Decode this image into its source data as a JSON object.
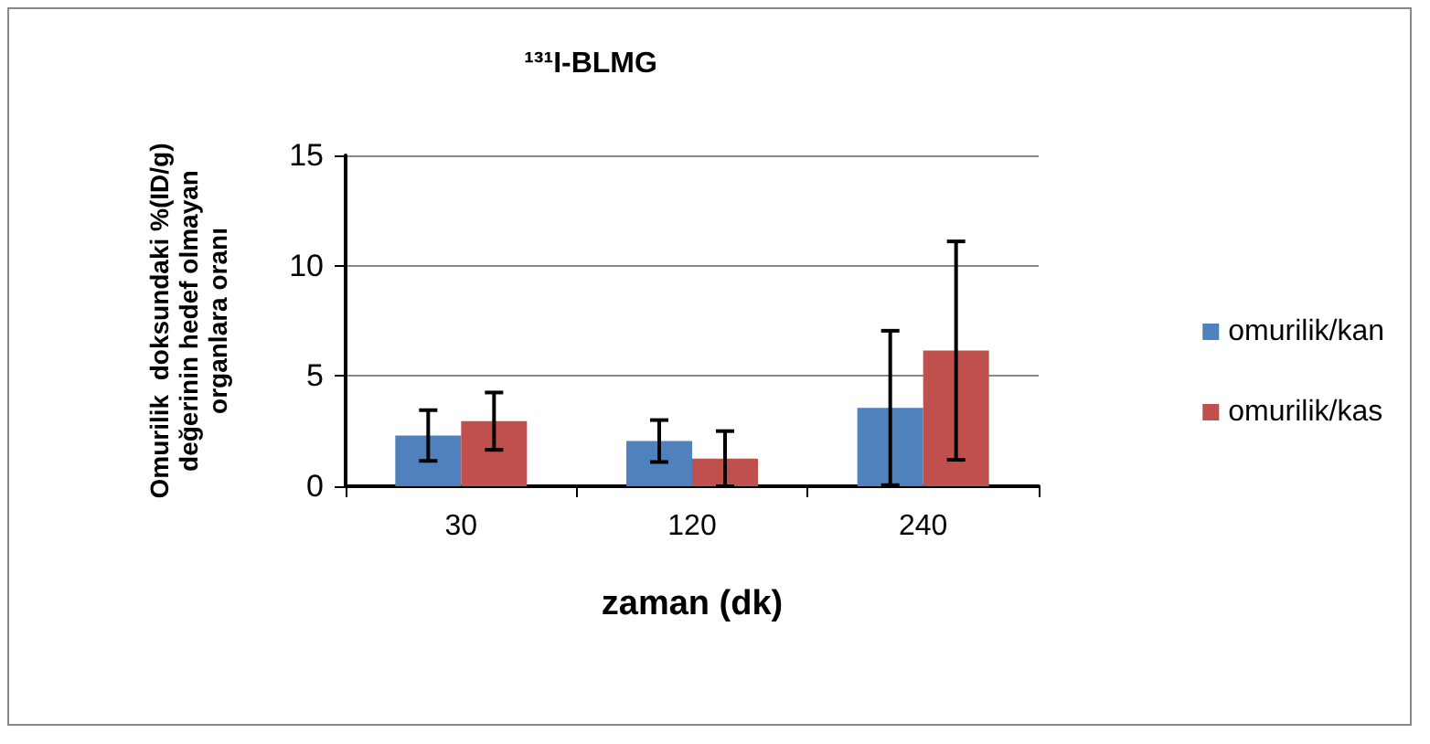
{
  "chart_data": {
    "type": "bar",
    "title": "¹³¹I-BLMG",
    "xlabel": "zaman (dk)",
    "ylabel": "Omurilik  doksundaki %(ID/g)\ndeğerinin hedef olmayan\norganlara oranı",
    "categories": [
      "30",
      "120",
      "240"
    ],
    "series": [
      {
        "name": "omurilik/kan",
        "color": "#4f81bd",
        "values": [
          2.3,
          2.05,
          3.55
        ],
        "errors": [
          1.15,
          0.95,
          3.5
        ]
      },
      {
        "name": "omurilik/kas",
        "color": "#c0504d",
        "values": [
          2.95,
          1.25,
          6.15
        ],
        "errors": [
          1.3,
          1.25,
          4.95
        ]
      }
    ],
    "ylim": [
      0,
      15
    ],
    "yticks": [
      0,
      5,
      10,
      15
    ],
    "grid": "y",
    "legend": "right"
  }
}
